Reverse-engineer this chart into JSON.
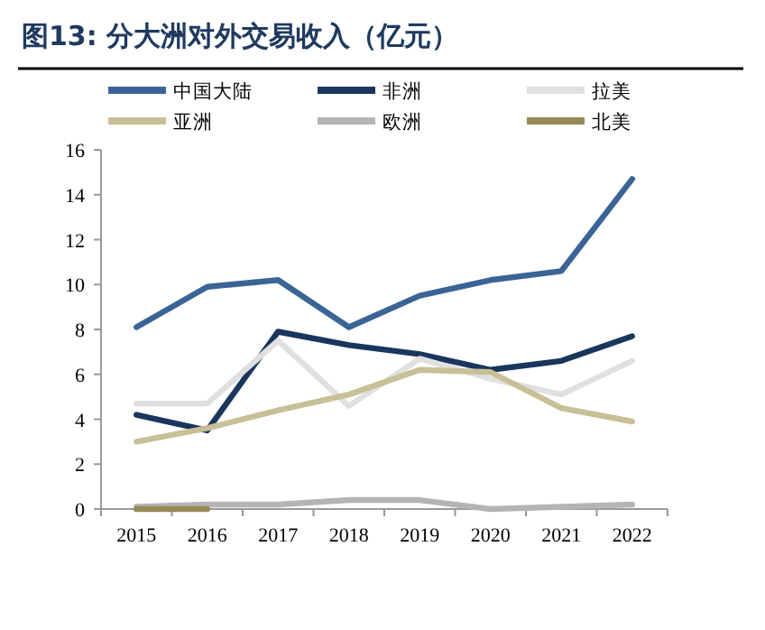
{
  "chart_data": {
    "type": "line",
    "title": "图13:  分大洲对外交易收入（亿元）",
    "categories": [
      "2015",
      "2016",
      "2017",
      "2018",
      "2019",
      "2020",
      "2021",
      "2022"
    ],
    "series": [
      {
        "name": "中国大陆",
        "color": "#3b6496",
        "values": [
          8.1,
          9.9,
          10.2,
          8.1,
          9.5,
          10.2,
          10.6,
          14.7
        ]
      },
      {
        "name": "非洲",
        "color": "#1a365d",
        "values": [
          4.2,
          3.5,
          7.9,
          7.3,
          6.9,
          6.2,
          6.6,
          7.7
        ]
      },
      {
        "name": "拉美",
        "color": "#e0e0e0",
        "values": [
          4.7,
          4.7,
          7.5,
          4.6,
          6.7,
          5.8,
          5.1,
          6.6
        ]
      },
      {
        "name": "亚洲",
        "color": "#c8bf96",
        "values": [
          3.0,
          3.6,
          4.4,
          5.1,
          6.2,
          6.1,
          4.5,
          3.9
        ]
      },
      {
        "name": "欧洲",
        "color": "#b4b4b4",
        "values": [
          0.1,
          0.2,
          0.2,
          0.4,
          0.4,
          0.0,
          0.1,
          0.2
        ]
      },
      {
        "name": "北美",
        "color": "#968a57",
        "values": [
          0,
          0,
          null,
          null,
          null,
          null,
          null,
          null
        ]
      }
    ],
    "ylim": [
      0,
      16
    ],
    "yticks": [
      0,
      2,
      4,
      6,
      8,
      10,
      12,
      14,
      16
    ],
    "grid": false,
    "legend": "top",
    "marker": "none",
    "line_style": "solid"
  }
}
